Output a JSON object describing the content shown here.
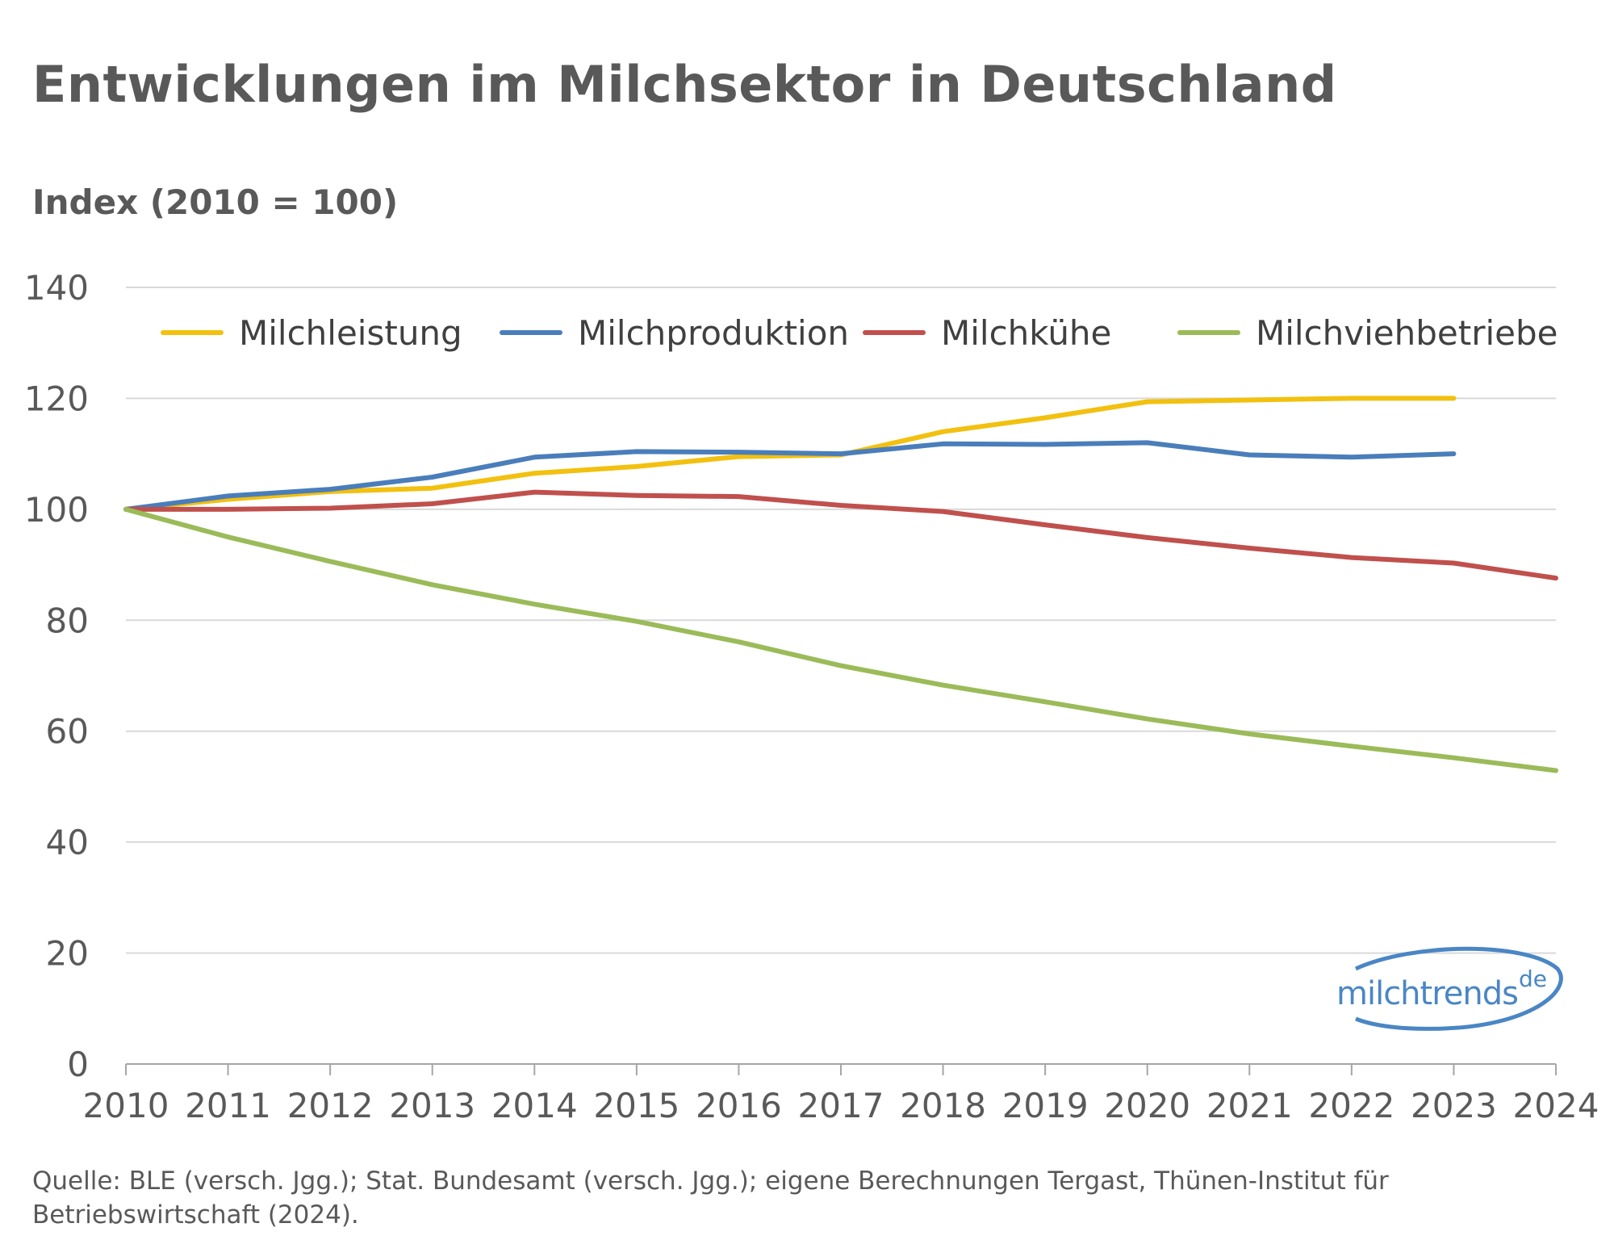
{
  "title": "Entwicklungen im Milchsektor in Deutschland",
  "y_axis_title": "Index (2010 = 100)",
  "source": "Quelle: BLE (versch. Jgg.); Stat. Bundesamt (versch. Jgg.); eigene Berechnungen Tergast, Thünen-Institut für Betriebswirtschaft (2024).",
  "logo": {
    "text": "milchtrends",
    "suffix": "de"
  },
  "chart_data": {
    "type": "line",
    "title": "Entwicklungen im Milchsektor in Deutschland",
    "ylabel": "Index (2010 = 100)",
    "xlabel": "",
    "ylim": [
      0,
      140
    ],
    "yticks": [
      "0",
      "20",
      "40",
      "60",
      "80",
      "100",
      "120",
      "140"
    ],
    "categories": [
      "2010",
      "2011",
      "2012",
      "2013",
      "2014",
      "2015",
      "2016",
      "2017",
      "2018",
      "2019",
      "2020",
      "2021",
      "2022",
      "2023",
      "2024"
    ],
    "legend_position": "top",
    "grid": true,
    "series": [
      {
        "name": "Milchleistung",
        "color": "#f2c00f",
        "values": [
          100,
          101.8,
          103.2,
          103.8,
          106.5,
          107.7,
          109.5,
          109.8,
          114,
          116.5,
          119.4,
          119.7,
          120,
          120,
          null
        ]
      },
      {
        "name": "Milchproduktion",
        "color": "#4a7ebb",
        "values": [
          100,
          102.4,
          103.6,
          105.8,
          109.4,
          110.4,
          110.3,
          110,
          111.8,
          111.7,
          112,
          109.8,
          109.4,
          110,
          null
        ]
      },
      {
        "name": "Milchkühe",
        "color": "#c0504d",
        "values": [
          100,
          100,
          100.2,
          101,
          103.1,
          102.5,
          102.3,
          100.7,
          99.6,
          97.2,
          94.9,
          93,
          91.3,
          90.3,
          87.6
        ]
      },
      {
        "name": "Milchviehbetriebe",
        "color": "#9bbb59",
        "values": [
          100,
          95,
          90.6,
          86.4,
          82.9,
          79.8,
          76.1,
          71.8,
          68.3,
          65.3,
          62.2,
          59.5,
          57.3,
          55.2,
          52.9
        ]
      }
    ]
  }
}
